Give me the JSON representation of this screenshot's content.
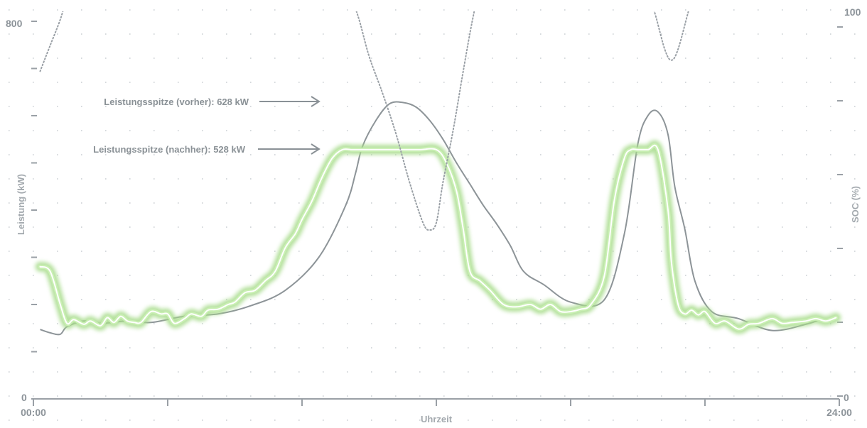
{
  "chart_data": {
    "type": "line",
    "xlabel": "Uhrzeit",
    "ylabel_left": "Leistung (kW)",
    "ylabel_right": "SOC (%)",
    "x_ticks": [
      "00:00",
      "24:00"
    ],
    "x_range_hours": [
      0,
      24
    ],
    "y_left_ticks": [
      "0",
      "800"
    ],
    "y_left_range": [
      0,
      800
    ],
    "y_right_ticks": [
      "0",
      "100"
    ],
    "y_right_range": [
      0,
      100
    ],
    "grid": "dotted",
    "annotations": [
      {
        "text": "Leistungsspitze (vorher): 628 kW",
        "value": 628
      },
      {
        "text": "Leistungsspitze (nachher): 528 kW",
        "value": 528
      }
    ],
    "series": [
      {
        "key": "load_before",
        "style": "solid-gray",
        "x": [
          0.2,
          0.5,
          0.8,
          1.0,
          1.5,
          2.0,
          2.8,
          3.5,
          4.5,
          5.5,
          6.5,
          7.5,
          8.5,
          9.3,
          9.6,
          9.8,
          10.2,
          10.6,
          11.0,
          11.4,
          11.8,
          12.2,
          12.6,
          13.0,
          13.4,
          13.8,
          14.2,
          14.6,
          15.2,
          16.0,
          17.0,
          17.6,
          18.0,
          18.3,
          18.6,
          18.9,
          19.1,
          19.4,
          19.7,
          20.2,
          21.0,
          22.0,
          23.0,
          23.5
        ],
        "y": [
          147,
          140,
          137,
          153,
          165,
          160,
          165,
          162,
          175,
          180,
          198,
          230,
          300,
          410,
          480,
          535,
          590,
          625,
          628,
          618,
          590,
          550,
          500,
          455,
          410,
          370,
          325,
          270,
          242,
          205,
          210,
          350,
          540,
          600,
          608,
          560,
          450,
          360,
          250,
          185,
          170,
          145,
          158,
          170
        ]
      },
      {
        "key": "load_after",
        "style": "white-with-green-glow",
        "x": [
          0.2,
          0.5,
          0.8,
          1.0,
          1.2,
          1.5,
          1.7,
          2.0,
          2.2,
          2.4,
          2.6,
          2.8,
          3.0,
          3.2,
          3.5,
          3.8,
          4.0,
          4.2,
          4.5,
          4.7,
          5.0,
          5.2,
          5.5,
          5.8,
          6.0,
          6.3,
          6.6,
          6.9,
          7.2,
          7.5,
          7.8,
          8.0,
          8.3,
          8.6,
          8.9,
          9.2,
          9.5,
          9.8,
          10.0,
          10.5,
          11.0,
          11.5,
          12.0,
          12.3,
          12.6,
          12.8,
          13.0,
          13.3,
          13.6,
          14.0,
          14.4,
          14.8,
          15.1,
          15.4,
          15.7,
          16.0,
          16.3,
          16.6,
          17.0,
          17.3,
          17.6,
          17.8,
          18.0,
          18.3,
          18.6,
          18.9,
          19.0,
          19.2,
          19.4,
          19.6,
          19.8,
          20.0,
          20.3,
          20.6,
          21.0,
          21.3,
          21.6,
          22.0,
          22.3,
          22.6,
          23.0,
          23.3,
          23.6,
          23.9
        ],
        "y": [
          280,
          270,
          200,
          160,
          168,
          158,
          165,
          155,
          172,
          162,
          175,
          165,
          162,
          162,
          185,
          180,
          180,
          160,
          170,
          180,
          175,
          188,
          190,
          200,
          205,
          225,
          230,
          250,
          270,
          320,
          350,
          380,
          420,
          470,
          510,
          528,
          528,
          528,
          528,
          528,
          528,
          528,
          528,
          500,
          440,
          360,
          270,
          250,
          230,
          200,
          195,
          200,
          190,
          200,
          185,
          185,
          190,
          200,
          260,
          420,
          510,
          528,
          528,
          528,
          528,
          400,
          290,
          200,
          180,
          188,
          178,
          185,
          160,
          165,
          148,
          158,
          160,
          170,
          160,
          162,
          165,
          170,
          165,
          172
        ]
      },
      {
        "key": "soc",
        "style": "dotted-gray",
        "x": [
          0.2,
          0.5,
          0.8,
          1.0,
          1.2,
          9.4,
          9.7,
          10.0,
          10.4,
          10.8,
          11.2,
          11.6,
          11.8,
          12.0,
          12.2,
          12.5,
          12.8,
          13.1,
          13.4,
          18.2,
          18.5,
          18.8,
          19.0,
          19.2,
          19.5,
          19.8
        ],
        "y": [
          88,
          95,
          102,
          108,
          112,
          110,
          102,
          92,
          82,
          71,
          58,
          47,
          45,
          47,
          58,
          72,
          88,
          103,
          115,
          112,
          104,
          94,
          91,
          94,
          104,
          114
        ]
      }
    ]
  }
}
